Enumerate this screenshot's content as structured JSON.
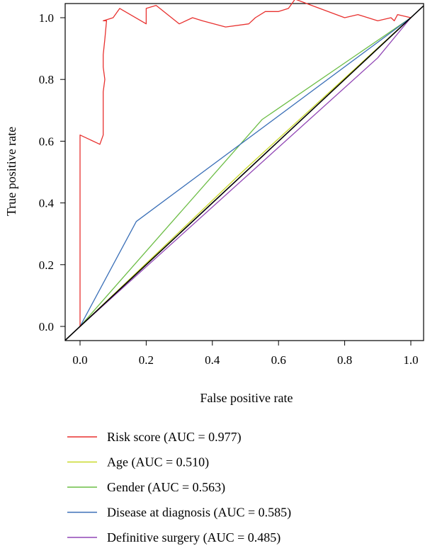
{
  "chart_data": {
    "type": "line",
    "xlabel": "False positive rate",
    "ylabel": "True positive rate",
    "xlim": [
      0,
      1
    ],
    "ylim": [
      0,
      1
    ],
    "x_ticks": [
      "0.0",
      "0.2",
      "0.4",
      "0.6",
      "0.8",
      "1.0"
    ],
    "y_ticks": [
      "0.0",
      "0.2",
      "0.4",
      "0.6",
      "0.8",
      "1.0"
    ],
    "grid": false,
    "legend_position": "bottom",
    "reference_line": {
      "x": [
        0,
        1
      ],
      "y": [
        0,
        1
      ],
      "color": "#000000"
    },
    "series": [
      {
        "name": "Risk score (AUC = 0.977)",
        "color": "#e8312f",
        "x": [
          0,
          0,
          0.06,
          0.07,
          0.07,
          0.075,
          0.07,
          0.07,
          0.075,
          0.08,
          0.075,
          0.07,
          0.1,
          0.12,
          0.2,
          0.2,
          0.23,
          0.3,
          0.34,
          0.37,
          0.44,
          0.51,
          0.53,
          0.56,
          0.6,
          0.63,
          0.65,
          0.7,
          0.8,
          0.84,
          0.9,
          0.94,
          0.95,
          0.96,
          1.0
        ],
        "y": [
          0,
          0.62,
          0.59,
          0.62,
          0.76,
          0.8,
          0.84,
          0.88,
          0.93,
          0.99,
          0.99,
          0.99,
          1.0,
          1.03,
          0.98,
          1.03,
          1.04,
          0.98,
          1.0,
          0.99,
          0.97,
          0.98,
          1.0,
          1.02,
          1.02,
          1.03,
          1.06,
          1.04,
          1.0,
          1.01,
          0.99,
          1.0,
          0.99,
          1.01,
          1.0
        ]
      },
      {
        "name": "Age (AUC = 0.510)",
        "color": "#c9d92b",
        "x": [
          0,
          0.5,
          1
        ],
        "y": [
          0,
          0.51,
          1
        ]
      },
      {
        "name": "Gender (AUC = 0.563)",
        "color": "#6cbd45",
        "x": [
          0,
          0.55,
          1
        ],
        "y": [
          0,
          0.67,
          1
        ]
      },
      {
        "name": "Disease at diagnosis (AUC = 0.585)",
        "color": "#3a6fb7",
        "x": [
          0,
          0.17,
          1
        ],
        "y": [
          0,
          0.34,
          1
        ]
      },
      {
        "name": "Definitive surgery (AUC = 0.485)",
        "color": "#9146b5",
        "x": [
          0,
          0.9,
          1
        ],
        "y": [
          0,
          0.87,
          1
        ]
      }
    ]
  }
}
